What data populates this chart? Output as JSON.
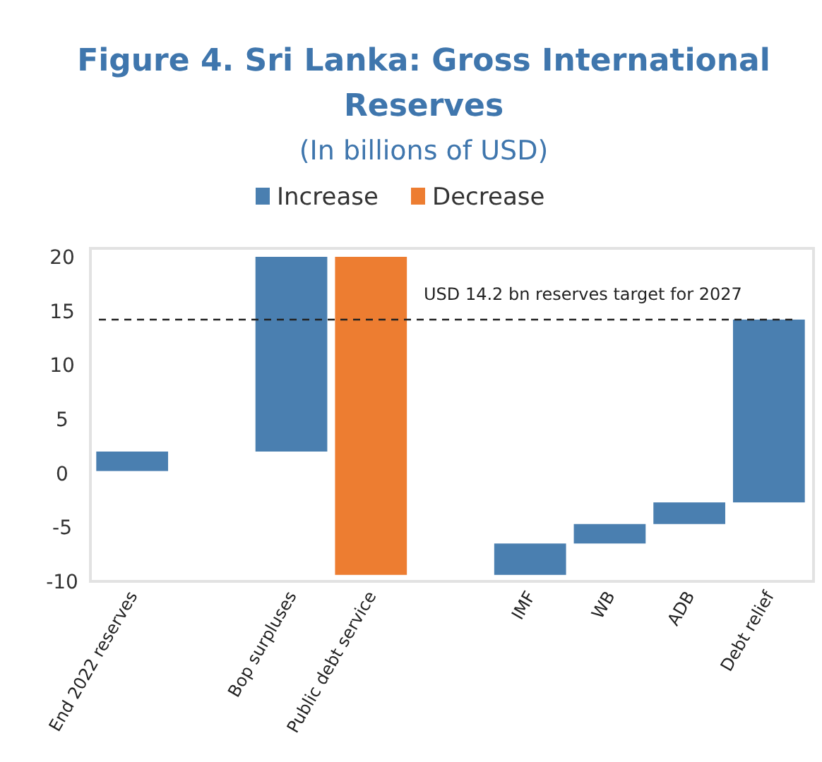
{
  "chart_data": {
    "type": "bar",
    "title": "Figure 4. Sri Lanka: Gross International Reserves",
    "subtitle": "(In billions of USD)",
    "categories": [
      "End 2022 reserves",
      null,
      "Bop surpluses",
      "Public debt service",
      null,
      "IMF",
      "WB",
      "ADB",
      "Debt relief"
    ],
    "series": [
      {
        "name": "Increase",
        "color": "#4a7fb0",
        "base": [
          0.2,
          null,
          2,
          null,
          null,
          -9.4,
          -6.5,
          -4.7,
          -2.7
        ],
        "values": [
          1.8,
          null,
          18,
          null,
          null,
          2.9,
          1.8,
          2,
          16.9
        ]
      },
      {
        "name": "Decrease",
        "color": "#ed7d31",
        "base": [
          null,
          null,
          null,
          20,
          null,
          null,
          null,
          null,
          null
        ],
        "values": [
          null,
          null,
          null,
          -29.4,
          null,
          null,
          null,
          null,
          null
        ]
      }
    ],
    "ylim": [
      -10,
      20
    ],
    "yticks": [
      -10,
      -5,
      0,
      5,
      10,
      15,
      20
    ],
    "ref_lines": [
      {
        "axis": "y",
        "value": 14.2,
        "label": "USD 14.2 bn reserves target for 2027",
        "line_style": "dashed",
        "color": "#222222"
      }
    ],
    "legend": "top",
    "grid": false
  }
}
